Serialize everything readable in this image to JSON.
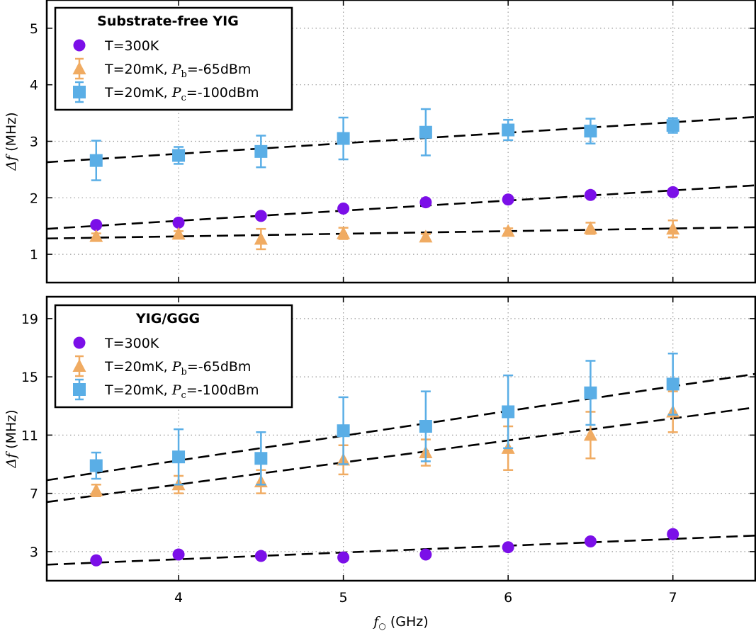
{
  "chart_data": [
    {
      "type": "scatter",
      "legend_title": "Substrate-free YIG",
      "legend_position": "top-left",
      "xlim": [
        3.2,
        7.5
      ],
      "ylim": [
        0.5,
        5.5
      ],
      "yticks": [
        1,
        2,
        3,
        4,
        5
      ],
      "xticks": [
        4,
        5,
        6,
        7
      ],
      "grid": true,
      "ylabel_math": "Δf",
      "ylabel": "(MHz)",
      "series": [
        {
          "name": "T=300K",
          "marker": "circle",
          "color": "#7b0fe8",
          "x": [
            3.5,
            4,
            4.5,
            5,
            5.5,
            6,
            6.5,
            7
          ],
          "y": [
            1.52,
            1.56,
            1.68,
            1.81,
            1.92,
            1.97,
            2.05,
            2.1
          ],
          "err": [
            0,
            0,
            0,
            0,
            0,
            0,
            0,
            0
          ],
          "fit": [
            [
              3.2,
              1.45
            ],
            [
              7.5,
              2.22
            ]
          ]
        },
        {
          "name": "T=20mK, ",
          "name_math": "P",
          "name_sub": "b",
          "name_suffix": "=-65dBm",
          "marker": "triangle",
          "color": "#f0ab62",
          "x": [
            3.5,
            4,
            4.5,
            5,
            5.5,
            6,
            6.5,
            7
          ],
          "y": [
            1.32,
            1.36,
            1.27,
            1.37,
            1.31,
            1.41,
            1.46,
            1.45
          ],
          "err": [
            0.05,
            0.05,
            0.18,
            0.1,
            0.05,
            0.05,
            0.1,
            0.15
          ],
          "fit": [
            [
              3.2,
              1.28
            ],
            [
              7.5,
              1.48
            ]
          ]
        },
        {
          "name": "T=20mK, ",
          "name_math": "P",
          "name_sub": "c",
          "name_suffix": "=-100dBm",
          "marker": "square",
          "color": "#5aaee6",
          "x": [
            3.5,
            4,
            4.5,
            5,
            5.5,
            6,
            6.5,
            7
          ],
          "y": [
            2.66,
            2.75,
            2.82,
            3.05,
            3.16,
            3.2,
            3.18,
            3.28
          ],
          "err": [
            0.35,
            0.15,
            0.28,
            0.37,
            0.41,
            0.18,
            0.22,
            0.13
          ],
          "fit": [
            [
              3.2,
              2.63
            ],
            [
              7.5,
              3.43
            ]
          ]
        }
      ]
    },
    {
      "type": "scatter",
      "legend_title": "YIG/GGG",
      "legend_position": "top-left",
      "xlim": [
        3.2,
        7.5
      ],
      "ylim": [
        1,
        20.5
      ],
      "yticks": [
        3,
        7,
        11,
        15,
        19
      ],
      "xticks": [
        4,
        5,
        6,
        7
      ],
      "xticklabels": [
        "4",
        "5",
        "6",
        "7"
      ],
      "grid": true,
      "ylabel_math": "Δf",
      "ylabel": "(MHz)",
      "xlabel_math": "f",
      "xlabel_sub": "○",
      "xlabel": "(GHz)",
      "series": [
        {
          "name": "T=300K",
          "marker": "circle",
          "color": "#7b0fe8",
          "x": [
            3.5,
            4,
            4.5,
            5,
            5.5,
            6,
            6.5,
            7
          ],
          "y": [
            2.4,
            2.8,
            2.7,
            2.6,
            2.8,
            3.3,
            3.7,
            4.2
          ],
          "err": [
            0,
            0,
            0,
            0,
            0,
            0,
            0,
            0
          ],
          "fit": [
            [
              3.2,
              2.1
            ],
            [
              7.5,
              4.1
            ]
          ]
        },
        {
          "name": "T=20mK, ",
          "name_math": "P",
          "name_sub": "b",
          "name_suffix": "=-65dBm",
          "marker": "triangle",
          "color": "#f0ab62",
          "x": [
            3.5,
            4,
            4.5,
            5,
            5.5,
            6,
            6.5,
            7
          ],
          "y": [
            7.2,
            7.6,
            7.8,
            9.3,
            9.8,
            10.1,
            11.0,
            12.6
          ],
          "err": [
            0.4,
            0.6,
            0.8,
            1.0,
            0.9,
            1.5,
            1.6,
            1.4
          ],
          "fit": [
            [
              3.2,
              6.4
            ],
            [
              7.5,
              12.9
            ]
          ]
        },
        {
          "name": "T=20mK, ",
          "name_math": "P",
          "name_sub": "c",
          "name_suffix": "=-100dBm",
          "marker": "square",
          "color": "#5aaee6",
          "x": [
            3.5,
            4,
            4.5,
            5,
            5.5,
            6,
            6.5,
            7
          ],
          "y": [
            8.9,
            9.5,
            9.4,
            11.3,
            11.6,
            12.6,
            13.9,
            14.5
          ],
          "err": [
            0.9,
            1.9,
            1.8,
            2.3,
            2.4,
            2.5,
            2.2,
            2.1
          ],
          "fit": [
            [
              3.2,
              7.9
            ],
            [
              7.5,
              15.2
            ]
          ]
        }
      ]
    }
  ]
}
